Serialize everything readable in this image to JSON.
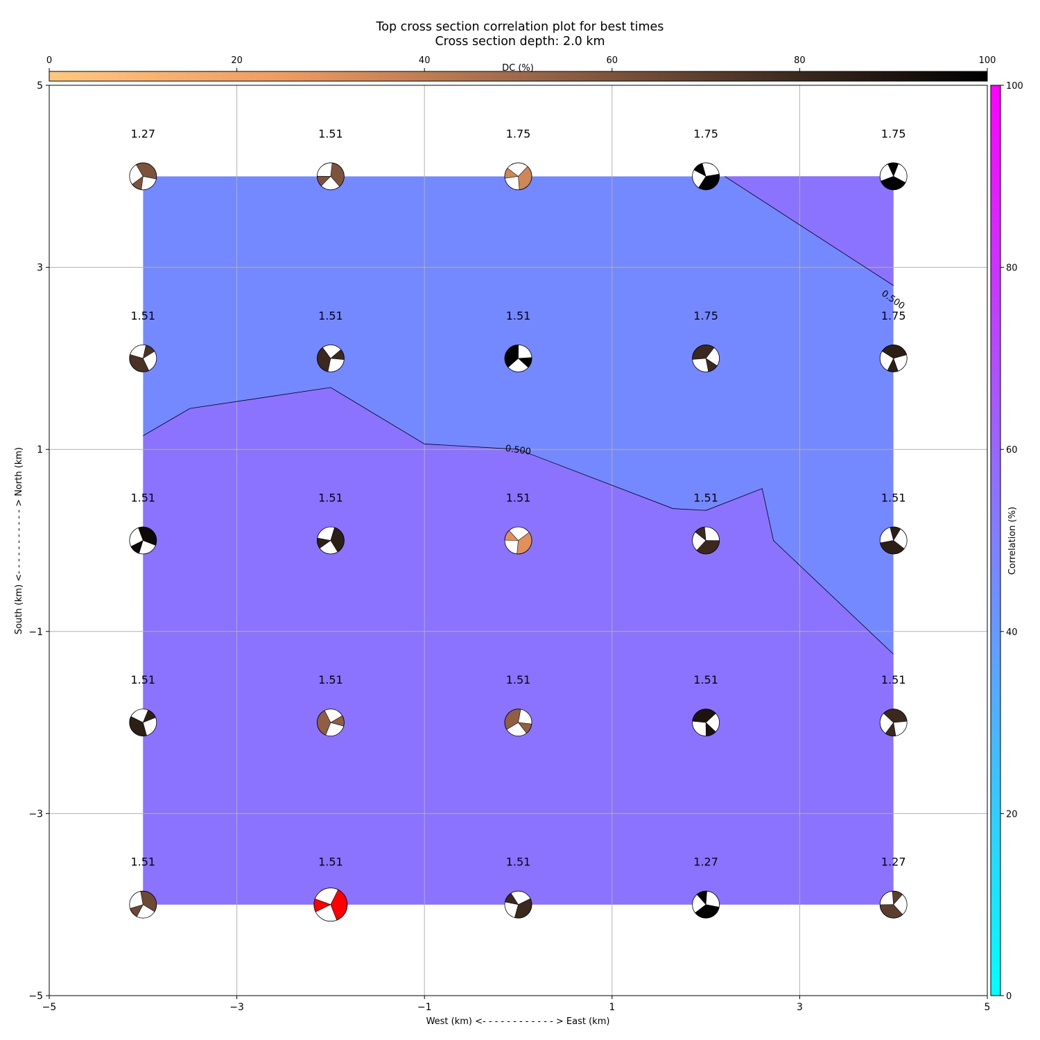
{
  "chart_data": {
    "type": "heatmap",
    "title": "Top cross section correlation plot for best times",
    "subtitle": "Cross section depth: 2.0 km",
    "xlabel": "West (km) <- - - - - - - - - - - - > East (km)",
    "ylabel": "South (km) <- - - - - - - - - - - > North (km)",
    "xlim": [
      -5,
      5
    ],
    "ylim": [
      -5,
      5
    ],
    "x_ticks": [
      -5,
      -3,
      -1,
      1,
      3,
      5
    ],
    "y_ticks": [
      -5,
      -3,
      -1,
      1,
      3,
      5
    ],
    "x_tick_labels": [
      "−5",
      "−3",
      "−1",
      "1",
      "3",
      "5"
    ],
    "y_tick_labels": [
      "−5",
      "−3",
      "−1",
      "1",
      "3",
      "5"
    ],
    "grid": true,
    "grid_points": {
      "x": [
        -4,
        -2,
        0,
        2,
        4
      ],
      "y": [
        4,
        2,
        0,
        -2,
        -4
      ]
    },
    "value_labels": [
      [
        "1.27",
        "1.51",
        "1.75",
        "1.75",
        "1.75"
      ],
      [
        "1.51",
        "1.51",
        "1.51",
        "1.75",
        "1.75"
      ],
      [
        "1.51",
        "1.51",
        "1.51",
        "1.51",
        "1.51"
      ],
      [
        "1.51",
        "1.51",
        "1.51",
        "1.51",
        "1.51"
      ],
      [
        "1.51",
        "1.51",
        "1.51",
        "1.27",
        "1.27"
      ]
    ],
    "dc_percent": [
      [
        60,
        60,
        35,
        100,
        100
      ],
      [
        75,
        80,
        100,
        80,
        85
      ],
      [
        95,
        85,
        30,
        80,
        85
      ],
      [
        85,
        55,
        55,
        90,
        80
      ],
      [
        65,
        null,
        80,
        100,
        70
      ]
    ],
    "best_solution": {
      "x": -2,
      "y": -4,
      "color": "#ff0000"
    },
    "contours": [
      {
        "level_label": "0.500",
        "label_at": [
          0,
          1
        ],
        "points": [
          [
            -4,
            1.15
          ],
          [
            -3.5,
            1.45
          ],
          [
            -2,
            1.68
          ],
          [
            -1,
            1.06
          ],
          [
            0,
            1.0
          ],
          [
            1.65,
            0.35
          ],
          [
            2,
            0.33
          ],
          [
            2.6,
            0.57
          ],
          [
            2.72,
            0.0
          ],
          [
            4,
            -1.25
          ]
        ]
      },
      {
        "level_label": "0.500",
        "label_at": [
          4,
          2.65
        ],
        "points": [
          [
            2.2,
            4.0
          ],
          [
            4,
            2.8
          ]
        ]
      }
    ],
    "fill_colors": {
      "low": "#7489ff",
      "high": "#8c73ff"
    },
    "dc_colorbar": {
      "label": "DC (%)",
      "range": [
        0,
        100
      ],
      "ticks": [
        "0",
        "20",
        "40",
        "60",
        "80",
        "100"
      ],
      "colors": [
        "#ffc77f",
        "#000000"
      ]
    },
    "correlation_colorbar": {
      "label": "Correlation (%)",
      "range": [
        0,
        100
      ],
      "ticks": [
        "0",
        "20",
        "40",
        "60",
        "80",
        "100"
      ],
      "colors": [
        "#00ffff",
        "#ff00ff"
      ]
    }
  }
}
